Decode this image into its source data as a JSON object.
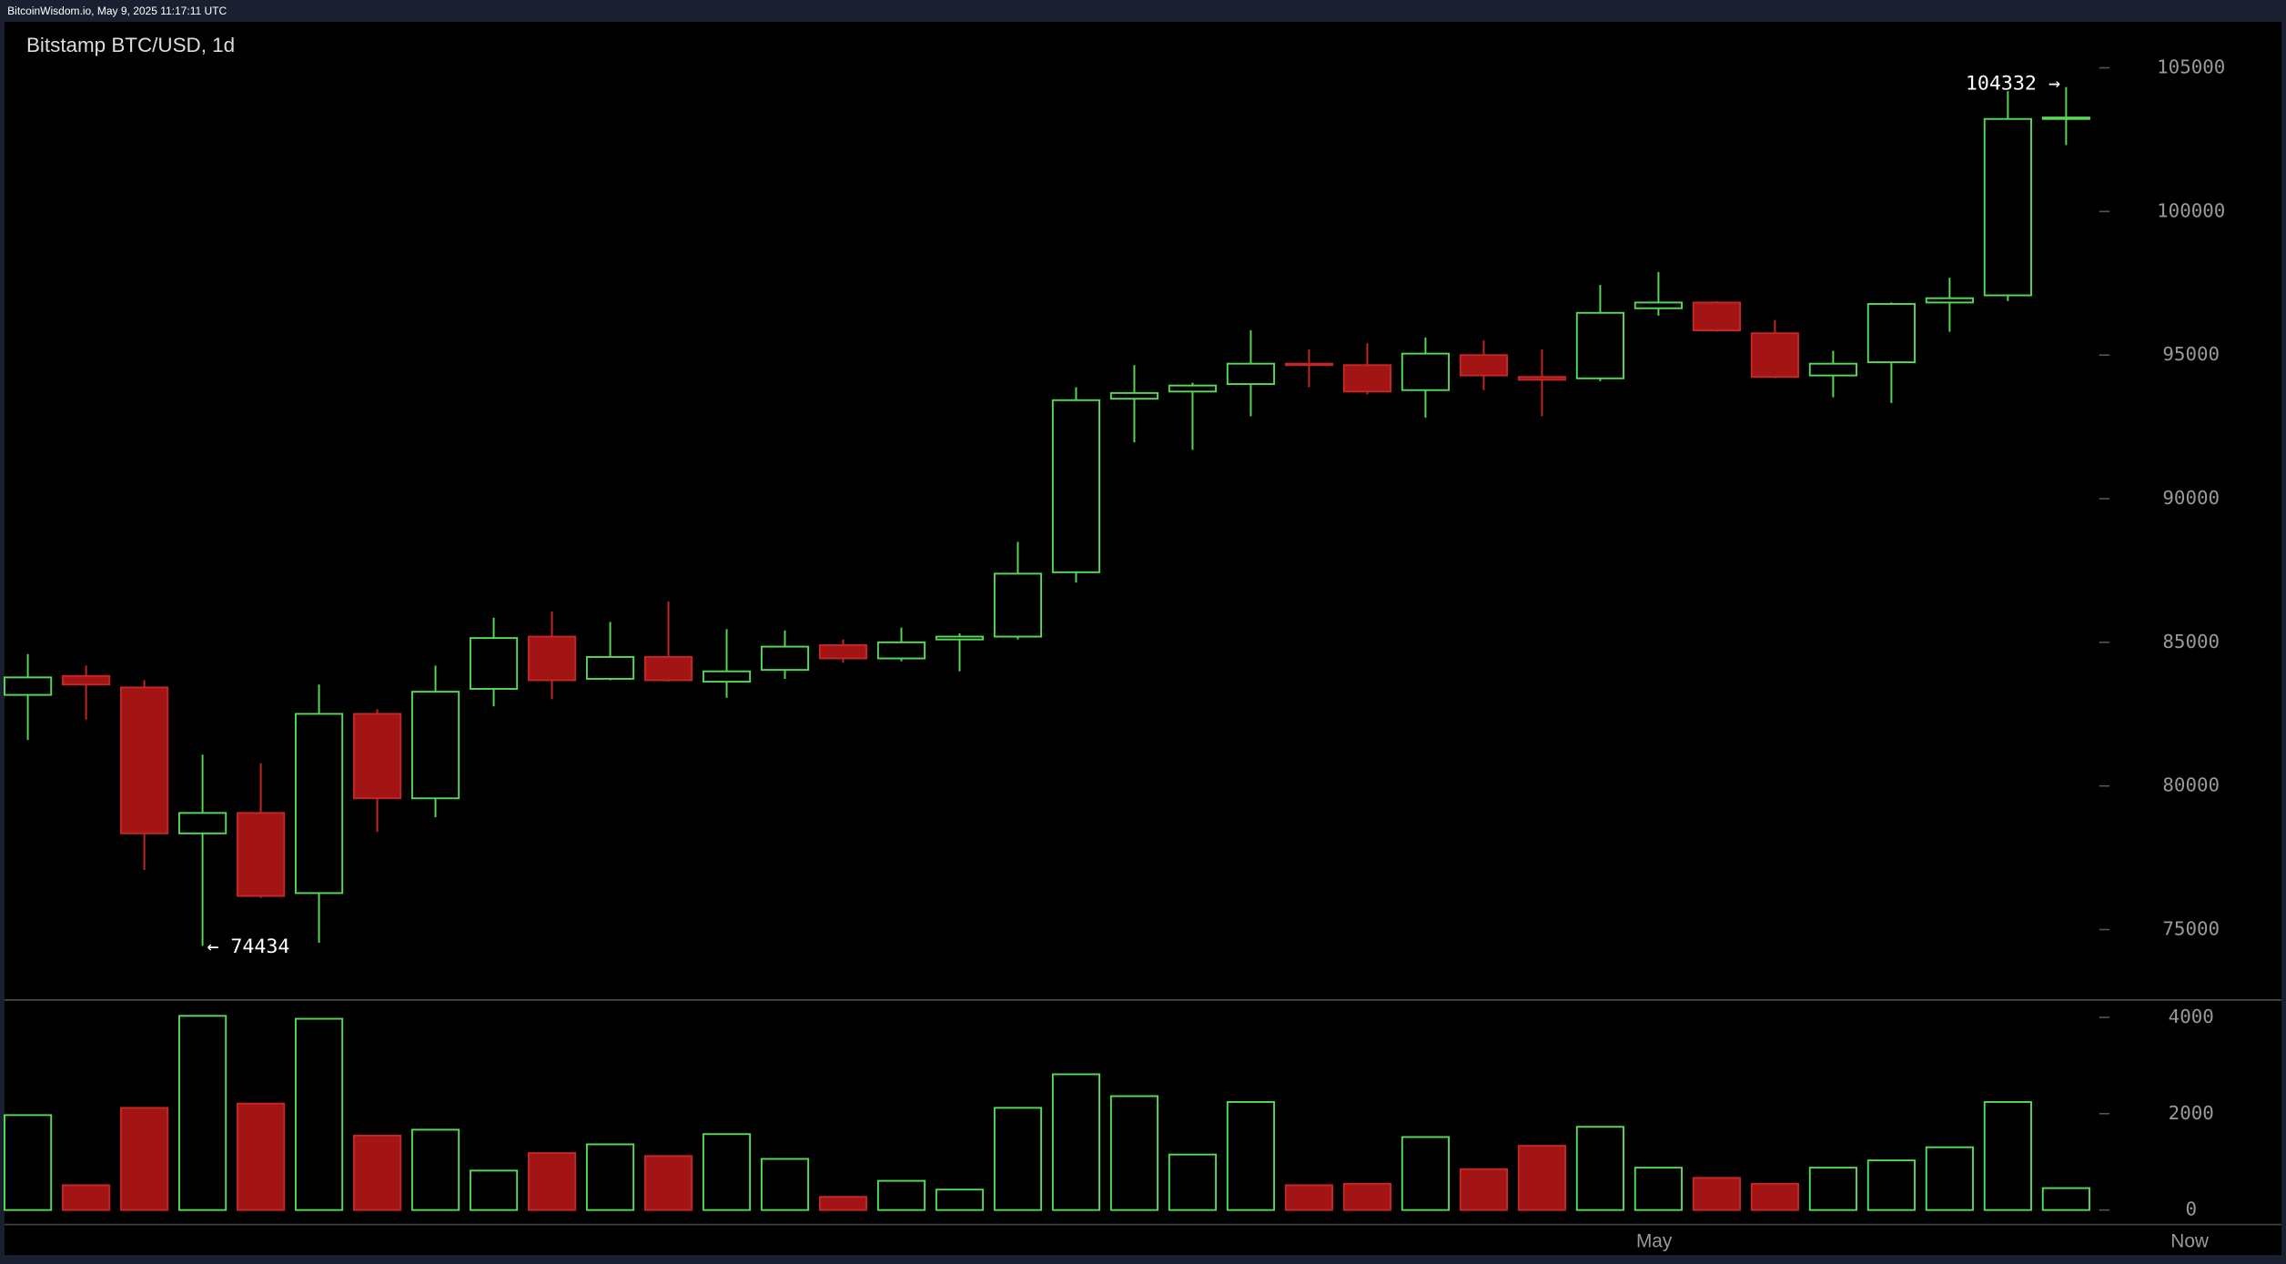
{
  "chart_data": {
    "type": "candlestick",
    "source": "BitcoinWisdom.io, May 9, 2025 11:17:11 UTC",
    "title": "Bitstamp BTC/USD, 1d",
    "categories": [
      null,
      null,
      null,
      null,
      null,
      null,
      null,
      null,
      null,
      null,
      null,
      null,
      null,
      null,
      null,
      null,
      null,
      null,
      null,
      null,
      null,
      null,
      null,
      null,
      null,
      null,
      null,
      null,
      "May",
      null,
      null,
      null,
      null,
      null,
      null,
      null
    ],
    "end_label": "Now",
    "up_color": "#57d957",
    "down_color": "#a31414",
    "down_stroke": "#c42727",
    "open": [
      83170,
      83830,
      83430,
      78350,
      79060,
      76270,
      82510,
      79570,
      83380,
      85200,
      83730,
      84490,
      83630,
      84040,
      84900,
      84440,
      85100,
      85200,
      87440,
      93480,
      93730,
      93990,
      94700,
      94650,
      93780,
      95000,
      94240,
      94190,
      96630,
      96830,
      95760,
      94290,
      94750,
      96830,
      97080,
      103220
    ],
    "high": [
      84590,
      84190,
      83680,
      81090,
      80790,
      83530,
      82670,
      84190,
      85860,
      86070,
      85710,
      86420,
      85460,
      85410,
      85100,
      85510,
      85310,
      88500,
      93880,
      94650,
      94040,
      95860,
      95200,
      95410,
      95610,
      95510,
      95200,
      97440,
      97890,
      96880,
      96220,
      95150,
      96830,
      97690,
      104190,
      104332
    ],
    "low": [
      81600,
      82310,
      77080,
      74434,
      76100,
      74540,
      78400,
      78910,
      82770,
      83020,
      83680,
      83630,
      83070,
      83730,
      84290,
      84340,
      83990,
      85100,
      87080,
      91960,
      91700,
      92870,
      93880,
      93630,
      92820,
      93780,
      92870,
      94090,
      96370,
      95810,
      94190,
      93530,
      93330,
      95810,
      96880,
      102310
    ],
    "close": [
      83780,
      83530,
      78350,
      79060,
      76170,
      82510,
      79570,
      83280,
      85150,
      83680,
      84490,
      83680,
      83990,
      84850,
      84440,
      85000,
      85200,
      87390,
      93430,
      93680,
      93940,
      94700,
      94650,
      93730,
      95050,
      94290,
      94140,
      96470,
      96830,
      95860,
      94240,
      94700,
      96780,
      96980,
      103220,
      103270
    ],
    "ylim": [
      72600,
      106600
    ],
    "yticks": [
      75000,
      80000,
      85000,
      90000,
      95000,
      100000,
      105000
    ],
    "annotations": [
      {
        "text": "104332 →"
      },
      {
        "text": "← 74434"
      }
    ],
    "volume": [
      1970,
      515,
      2120,
      4030,
      2210,
      3970,
      1545,
      1667,
      818,
      1182,
      1364,
      1121,
      1576,
      1061,
      273,
      606,
      424,
      2121,
      2818,
      2364,
      1152,
      2242,
      515,
      545,
      1515,
      848,
      1333,
      1727,
      879,
      667,
      545,
      879,
      1030,
      1303,
      2242,
      455
    ],
    "volume_ylim": [
      -300,
      4360
    ],
    "volume_yticks": [
      0,
      2000,
      4000
    ]
  }
}
